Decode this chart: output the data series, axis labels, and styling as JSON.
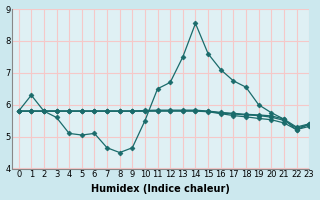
{
  "xlabel": "Humidex (Indice chaleur)",
  "xlim": [
    -0.5,
    23
  ],
  "ylim": [
    4,
    9
  ],
  "yticks": [
    4,
    5,
    6,
    7,
    8,
    9
  ],
  "xticks": [
    0,
    1,
    2,
    3,
    4,
    5,
    6,
    7,
    8,
    9,
    10,
    11,
    12,
    13,
    14,
    15,
    16,
    17,
    18,
    19,
    20,
    21,
    22,
    23
  ],
  "bg_color": "#cce8ee",
  "plot_bg_color": "#dff0f4",
  "grid_color": "#f5c8c8",
  "line_color": "#1a6b6b",
  "series": [
    [
      5.8,
      6.3,
      5.8,
      5.6,
      5.1,
      5.05,
      5.1,
      4.65,
      4.5,
      4.65,
      5.5,
      6.5,
      6.7,
      7.5,
      8.55,
      7.6,
      7.1,
      6.75,
      6.55,
      6.0,
      5.75,
      5.55,
      5.2,
      5.4
    ],
    [
      5.8,
      5.8,
      5.8,
      5.8,
      5.8,
      5.8,
      5.8,
      5.8,
      5.8,
      5.8,
      5.8,
      5.8,
      5.8,
      5.8,
      5.8,
      5.78,
      5.72,
      5.66,
      5.62,
      5.57,
      5.53,
      5.43,
      5.22,
      5.32
    ],
    [
      5.8,
      5.8,
      5.8,
      5.8,
      5.8,
      5.8,
      5.8,
      5.8,
      5.8,
      5.8,
      5.82,
      5.83,
      5.83,
      5.83,
      5.83,
      5.8,
      5.76,
      5.73,
      5.7,
      5.68,
      5.65,
      5.55,
      5.3,
      5.4
    ],
    [
      5.8,
      5.8,
      5.8,
      5.8,
      5.8,
      5.8,
      5.8,
      5.8,
      5.8,
      5.8,
      5.8,
      5.81,
      5.81,
      5.81,
      5.81,
      5.79,
      5.74,
      5.71,
      5.68,
      5.66,
      5.61,
      5.51,
      5.27,
      5.37
    ]
  ],
  "marker": "D",
  "markersize": 2.5,
  "linewidth": 0.9,
  "xlabel_fontsize": 7,
  "tick_fontsize": 6
}
